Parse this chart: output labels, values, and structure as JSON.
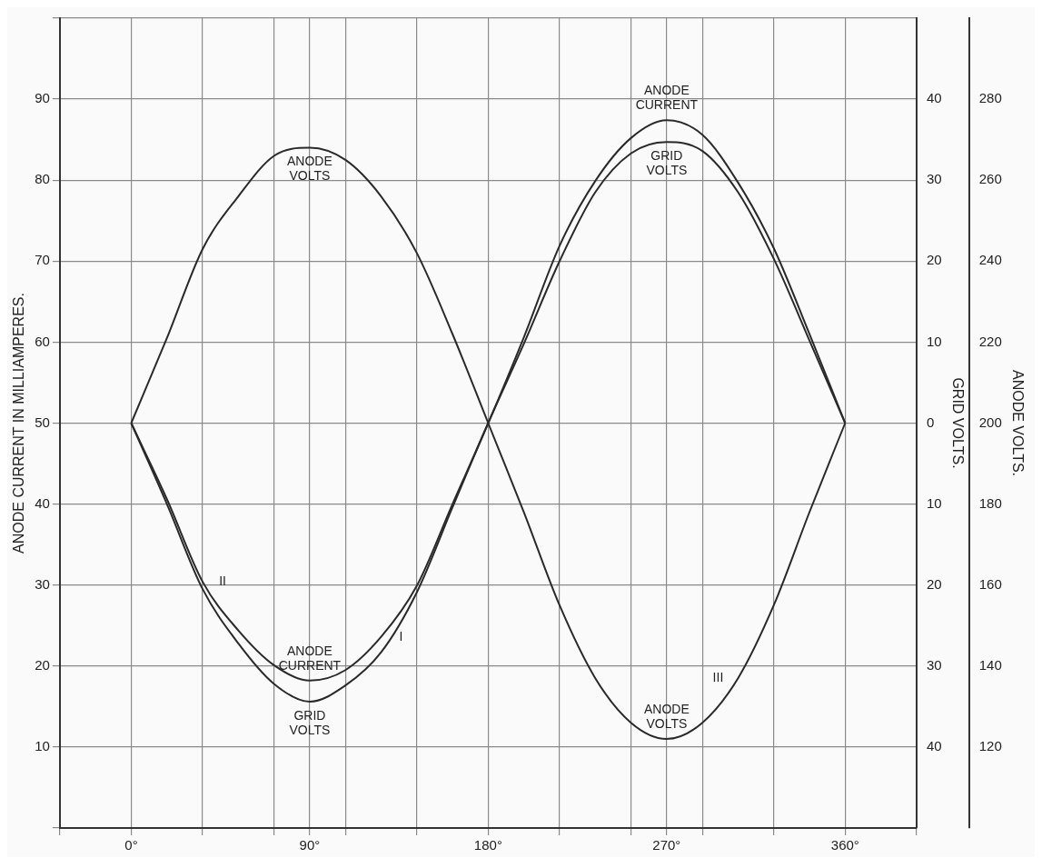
{
  "chart_data": {
    "type": "line",
    "xlabel": null,
    "ylabel": "ANODE CURRENT IN MILLIAMPERES.",
    "y2label": "GRID VOLTS.",
    "y3label": "ANODE VOLTS.",
    "x": [
      0,
      18,
      36,
      54,
      72,
      90,
      108,
      126,
      144,
      162,
      180,
      198,
      216,
      234,
      252,
      270,
      288,
      306,
      324,
      342,
      360
    ],
    "series": [
      {
        "name": "ANODE CURRENT",
        "color": "#2a2a2a",
        "axis": "y",
        "values": [
          50,
          40.6,
          30.4,
          24.4,
          20.1,
          18.2,
          19.5,
          23.6,
          29.9,
          40,
          50,
          60.6,
          71.9,
          79.9,
          85.2,
          87.4,
          85.6,
          79.7,
          71.6,
          61,
          50
        ]
      },
      {
        "name": "GRID VOLTS",
        "color": "#2a2a2a",
        "axis": "y2",
        "values": [
          0,
          -10,
          -20.5,
          -27.2,
          -32.2,
          -34.4,
          -32.4,
          -28.3,
          -20.9,
          -10.4,
          0,
          9.8,
          20,
          28.5,
          33.3,
          34.7,
          33.6,
          28.5,
          20.3,
          10.2,
          0
        ]
      },
      {
        "name": "ANODE VOLTS",
        "color": "#2a2a2a",
        "axis": "y3",
        "values": [
          200,
          221,
          243,
          256,
          266,
          268,
          265,
          256,
          242,
          222,
          200,
          178,
          155,
          137,
          126,
          122,
          126,
          137,
          155,
          178,
          200
        ]
      }
    ],
    "xlim": [
      -36,
      396
    ],
    "xticks": [
      {
        "value": -36,
        "label": null
      },
      {
        "value": 0,
        "label": "0°"
      },
      {
        "value": 36,
        "label": null
      },
      {
        "value": 72,
        "label": null
      },
      {
        "value": 90,
        "label": "90°"
      },
      {
        "value": 108,
        "label": null
      },
      {
        "value": 144,
        "label": null
      },
      {
        "value": 180,
        "label": "180°"
      },
      {
        "value": 216,
        "label": null
      },
      {
        "value": 252,
        "label": null
      },
      {
        "value": 270,
        "label": "270°"
      },
      {
        "value": 288,
        "label": null
      },
      {
        "value": 324,
        "label": null
      },
      {
        "value": 360,
        "label": "360°"
      },
      {
        "value": 396,
        "label": null
      }
    ],
    "ylim": [
      0,
      100
    ],
    "yticks": [
      {
        "value": 0,
        "label": null
      },
      10,
      20,
      30,
      40,
      50,
      60,
      70,
      80,
      90,
      {
        "value": 100,
        "label": null
      }
    ],
    "y2lim": [
      -50,
      50
    ],
    "y2ticks": [
      {
        "value": -40,
        "label": "40"
      },
      {
        "value": -30,
        "label": "30"
      },
      {
        "value": -20,
        "label": "20"
      },
      {
        "value": -10,
        "label": "10"
      },
      0,
      10,
      20,
      30,
      40
    ],
    "y3lim": [
      100,
      300
    ],
    "y3ticks": [
      120,
      140,
      160,
      180,
      200,
      220,
      240,
      260,
      280
    ],
    "grid": true,
    "legend": false,
    "annotations": [
      {
        "text": "I",
        "x": 126,
        "y": 23.6
      },
      {
        "text": "II",
        "x": 36,
        "y": 30.4
      },
      {
        "text": "III",
        "x": 306,
        "y": 18.5
      }
    ]
  }
}
